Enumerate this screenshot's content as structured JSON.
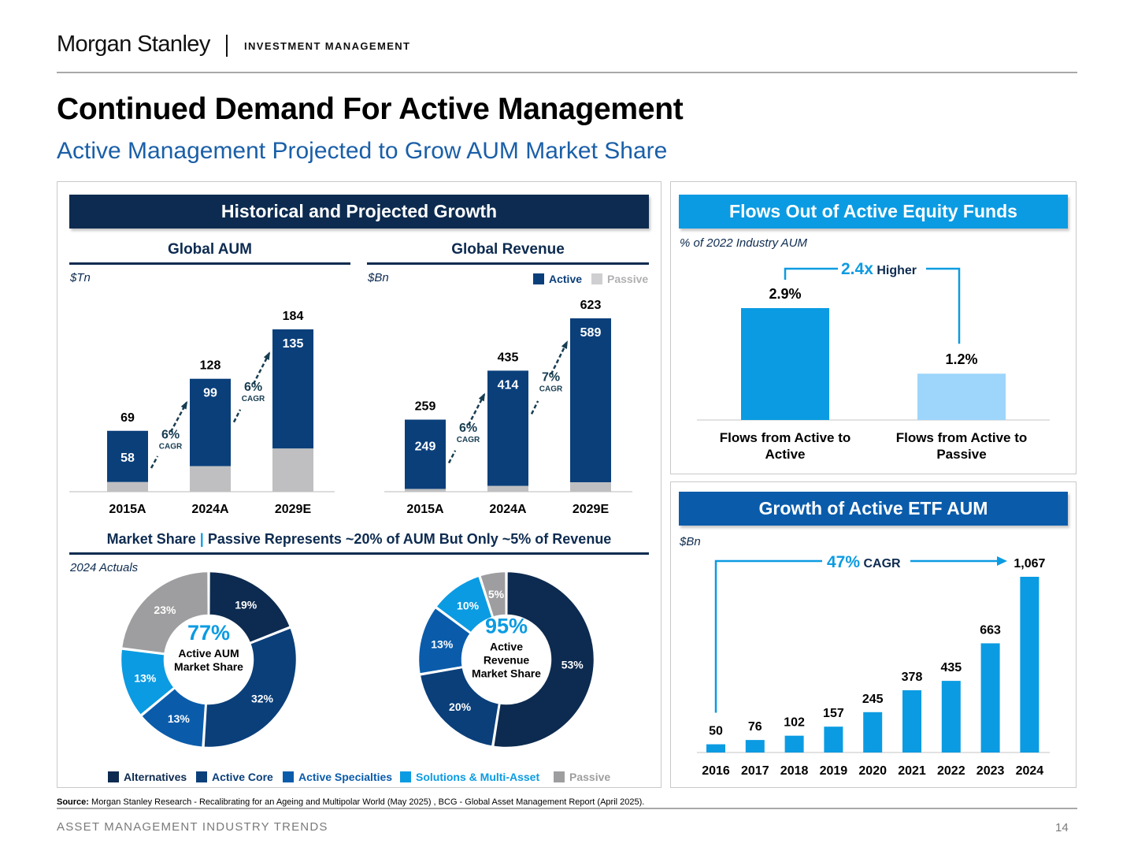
{
  "header": {
    "brand": "Morgan Stanley",
    "brand_sub": "INVESTMENT MANAGEMENT",
    "title": "Continued Demand For Active Management",
    "subtitle": "Active Management Projected to Grow AUM Market Share"
  },
  "left_panel": {
    "band": "Historical and Projected Growth",
    "aum_title": "Global AUM",
    "aum_unit": "$Tn",
    "revenue_title": "Global Revenue",
    "revenue_unit": "$Bn",
    "legend": {
      "active": "Active",
      "passive": "Passive"
    },
    "market_share_title": "Market Share",
    "market_share_sep": "|",
    "market_share_rest": "Passive Represents ~20% of AUM But Only ~5% of Revenue",
    "actuals_label": "2024 Actuals",
    "pie_legend": [
      "Alternatives",
      "Active Core",
      "Active Specialties",
      "Solutions & Multi-Asset",
      "Passive"
    ]
  },
  "right_top": {
    "band": "Flows Out of Active Equity Funds",
    "unit": "% of 2022 Industry AUM",
    "higher_value": "2.4x",
    "higher_text": "Higher"
  },
  "right_bottom": {
    "band": "Growth of Active ETF AUM",
    "unit": "$Bn",
    "cagr_value": "47%",
    "cagr_text": "CAGR"
  },
  "footer": {
    "source_label": "Source:",
    "source_text": "Morgan Stanley Research - Recalibrating for an Ageing and Multipolar World (May 2025) , BCG - Global Asset Management Report (April 2025).",
    "section": "ASSET MANAGEMENT INDUSTRY TRENDS",
    "page": "14"
  },
  "colors": {
    "navy": "#0d2b50",
    "active_blue": "#0a3f7a",
    "mid_blue": "#0a5cab",
    "bright_blue": "#0b9be2",
    "light_blue": "#9dd5fb",
    "passive_grey": "#bfbfc1",
    "pie_grey": "#9e9ea0",
    "teal_arrow": "#173d52"
  },
  "chart_data": [
    {
      "id": "global_aum",
      "type": "bar",
      "title": "Global AUM",
      "ylabel": "$Tn",
      "categories": [
        "2015A",
        "2024A",
        "2029E"
      ],
      "series": [
        {
          "name": "Active",
          "values": [
            58,
            99,
            135
          ]
        },
        {
          "name": "Passive",
          "values": [
            11,
            29,
            49
          ]
        }
      ],
      "totals": [
        69,
        128,
        184
      ],
      "cagr_labels": [
        {
          "value": "6%",
          "text": "CAGR"
        },
        {
          "value": "6%",
          "text": "CAGR"
        }
      ],
      "ylim": [
        0,
        184
      ]
    },
    {
      "id": "global_revenue",
      "type": "bar",
      "title": "Global Revenue",
      "ylabel": "$Bn",
      "categories": [
        "2015A",
        "2024A",
        "2029E"
      ],
      "series": [
        {
          "name": "Active",
          "values": [
            249,
            414,
            589
          ]
        },
        {
          "name": "Passive",
          "values": [
            10,
            21,
            34
          ]
        }
      ],
      "totals": [
        259,
        435,
        623
      ],
      "cagr_labels": [
        {
          "value": "6%",
          "text": "CAGR"
        },
        {
          "value": "7%",
          "text": "CAGR"
        }
      ],
      "ylim": [
        0,
        623
      ]
    },
    {
      "id": "aum_share",
      "type": "pie",
      "center_value": "77%",
      "center_text": [
        "Active AUM",
        "Market Share"
      ],
      "slices": [
        {
          "name": "Alternatives",
          "value": 19
        },
        {
          "name": "Active Core",
          "value": 32
        },
        {
          "name": "Active Specialties",
          "value": 13
        },
        {
          "name": "Solutions & Multi-Asset",
          "value": 13
        },
        {
          "name": "Passive",
          "value": 23
        }
      ]
    },
    {
      "id": "revenue_share",
      "type": "pie",
      "center_value": "95%",
      "center_text": [
        "Active",
        "Revenue",
        "Market Share"
      ],
      "slices": [
        {
          "name": "Alternatives",
          "value": 53
        },
        {
          "name": "Active Core",
          "value": 20
        },
        {
          "name": "Active Specialties",
          "value": 13
        },
        {
          "name": "Solutions & Multi-Asset",
          "value": 10
        },
        {
          "name": "Passive",
          "value": 5
        }
      ]
    },
    {
      "id": "active_flows",
      "type": "bar",
      "title": "Flows Out of Active Equity Funds",
      "ylabel": "% of 2022 Industry AUM",
      "categories": [
        "Flows from Active to Active",
        "Flows from Active to Passive"
      ],
      "values": [
        2.9,
        1.2
      ],
      "labels": [
        "2.9%",
        "1.2%"
      ],
      "ylim": [
        0,
        2.9
      ]
    },
    {
      "id": "active_etf_aum",
      "type": "bar",
      "title": "Growth of Active ETF AUM",
      "ylabel": "$Bn",
      "categories": [
        "2016",
        "2017",
        "2018",
        "2019",
        "2020",
        "2021",
        "2022",
        "2023",
        "2024"
      ],
      "values": [
        50,
        76,
        102,
        157,
        245,
        378,
        435,
        663,
        1067
      ],
      "labels": [
        "50",
        "76",
        "102",
        "157",
        "245",
        "378",
        "435",
        "663",
        "1,067"
      ],
      "ylim": [
        0,
        1067
      ]
    }
  ]
}
